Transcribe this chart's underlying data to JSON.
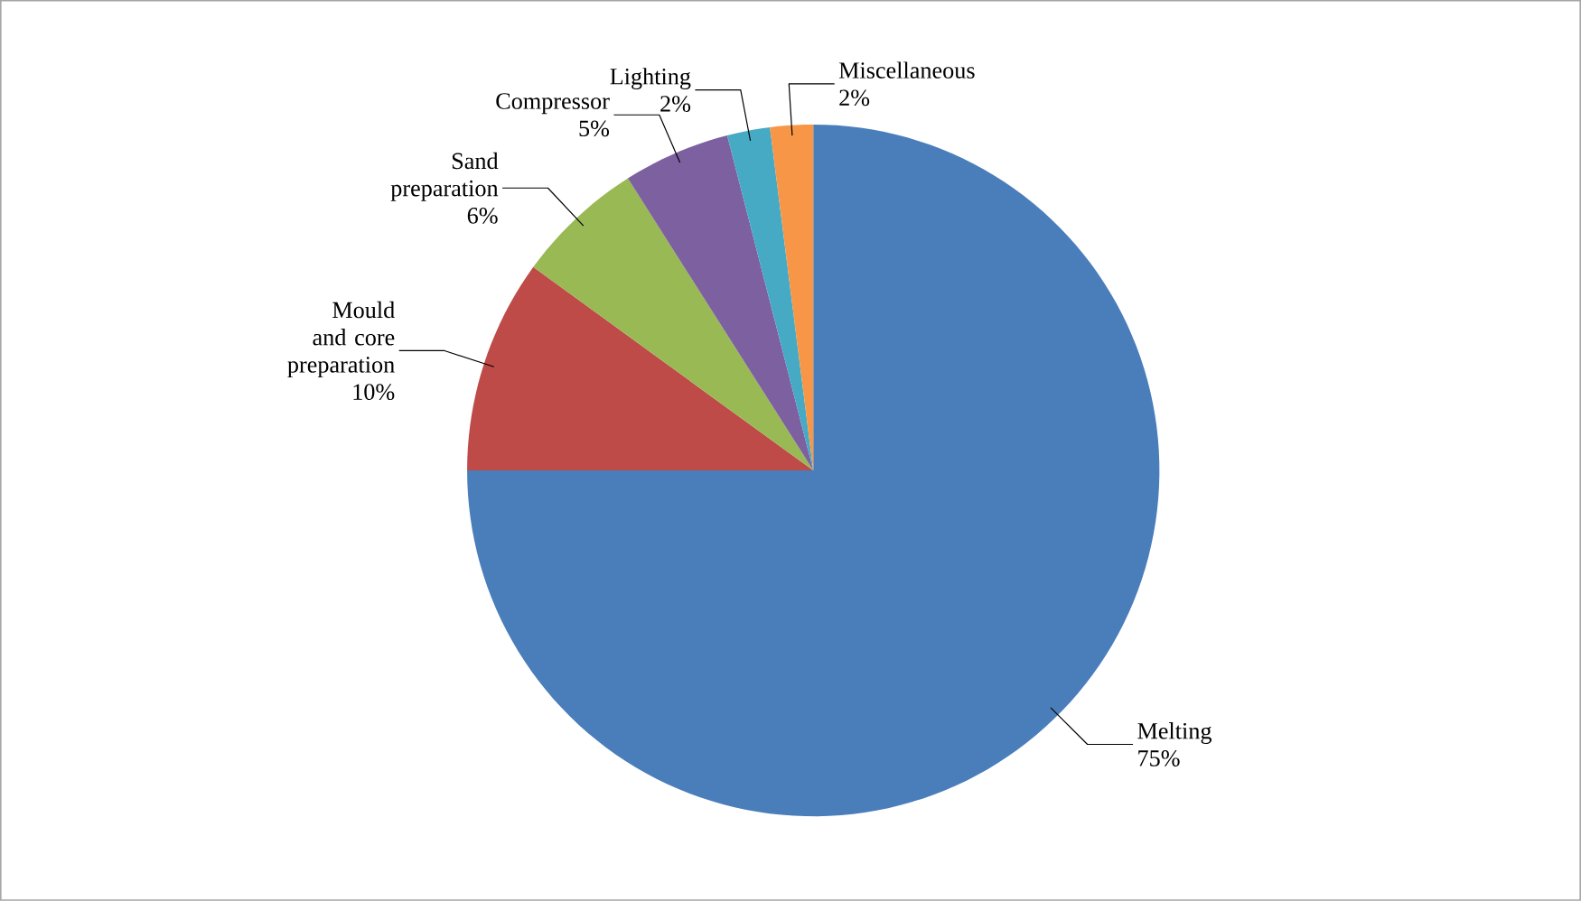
{
  "chart_data": {
    "type": "pie",
    "categories": [
      "Melting",
      "Mould and core preparation",
      "Sand preparation",
      "Compressor",
      "Lighting",
      "Miscellaneous"
    ],
    "values": [
      75,
      10,
      6,
      5,
      2,
      2
    ],
    "value_labels": [
      "75%",
      "10%",
      "6%",
      "5%",
      "2%",
      "2%"
    ],
    "colors": [
      "#4a7ebb",
      "#be4b48",
      "#98b954",
      "#7d60a0",
      "#46aac5",
      "#f79646"
    ]
  }
}
